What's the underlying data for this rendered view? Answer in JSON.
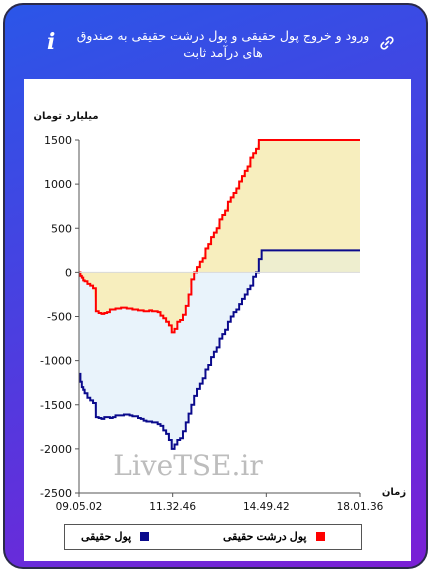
{
  "header": {
    "title": "ورود و خروج پول حقیقی و پول درشت حقیقی به صندوق های درآمد ثابت"
  },
  "watermark": "LiveTSE.ir",
  "colors": {
    "real_money": "#0a0a8c",
    "big_real_money": "#ff0000",
    "fill_upper": "#f7eebe",
    "fill_lower": "#e9f3fb"
  },
  "chart_data": {
    "type": "line",
    "ylabel": "میلیارد تومان",
    "xlabel": "زمان",
    "ylim": [
      -2500,
      1500
    ],
    "yticks": [
      1500,
      1000,
      500,
      0,
      -500,
      -1000,
      -1500,
      -2000,
      -2500
    ],
    "xticks": [
      "09.05.02",
      "11.32.46",
      "14.49.42",
      "18.01.36"
    ],
    "x": [
      0,
      0.5,
      1,
      1.5,
      2,
      3,
      4,
      5,
      6,
      7,
      8,
      9,
      10,
      11,
      12,
      13,
      14,
      15,
      16,
      17,
      18,
      19,
      20,
      21,
      22,
      23,
      24,
      25,
      26,
      27,
      28,
      29,
      30,
      31,
      32,
      33,
      34,
      35,
      36,
      37,
      38,
      39,
      40,
      41,
      42,
      43,
      44,
      45,
      46,
      47,
      48,
      49,
      50,
      51,
      52,
      53,
      54,
      55,
      56,
      57,
      58,
      59,
      60,
      61,
      62,
      63,
      64,
      65,
      66,
      67,
      68,
      69,
      70,
      71,
      72,
      73,
      74,
      75,
      76,
      77,
      78,
      79,
      80,
      85,
      90,
      95,
      100
    ],
    "series": [
      {
        "name": "پول حقیقی",
        "color": "#0a0a8c",
        "values": [
          -1150,
          -1240,
          -1300,
          -1330,
          -1370,
          -1420,
          -1450,
          -1480,
          -1640,
          -1650,
          -1660,
          -1640,
          -1640,
          -1650,
          -1640,
          -1620,
          -1620,
          -1620,
          -1610,
          -1610,
          -1620,
          -1630,
          -1630,
          -1650,
          -1660,
          -1680,
          -1690,
          -1690,
          -1700,
          -1700,
          -1720,
          -1740,
          -1790,
          -1830,
          -1900,
          -2000,
          -1950,
          -1900,
          -1880,
          -1800,
          -1700,
          -1600,
          -1500,
          -1400,
          -1320,
          -1260,
          -1200,
          -1100,
          -1050,
          -960,
          -900,
          -850,
          -750,
          -700,
          -650,
          -560,
          -500,
          -450,
          -420,
          -360,
          -300,
          -250,
          -190,
          -150,
          -50,
          0,
          150,
          250,
          250,
          250,
          250,
          250,
          250,
          250,
          250,
          250,
          250,
          250,
          250,
          250,
          250,
          250,
          250,
          250,
          250,
          250,
          250
        ]
      },
      {
        "name": "پول درشت حقیقی",
        "color": "#ff0000",
        "values": [
          0,
          -40,
          -60,
          -90,
          -100,
          -130,
          -150,
          -180,
          -440,
          -460,
          -470,
          -460,
          -450,
          -420,
          -420,
          -410,
          -410,
          -400,
          -400,
          -410,
          -410,
          -420,
          -420,
          -430,
          -430,
          -440,
          -440,
          -430,
          -440,
          -440,
          -450,
          -490,
          -520,
          -560,
          -600,
          -680,
          -640,
          -560,
          -540,
          -480,
          -380,
          -250,
          -80,
          0,
          60,
          120,
          160,
          270,
          320,
          400,
          450,
          500,
          600,
          650,
          700,
          800,
          850,
          900,
          950,
          1030,
          1090,
          1150,
          1200,
          1300,
          1350,
          1400,
          1500,
          1500,
          1500,
          1500,
          1500,
          1500,
          1500,
          1500,
          1500,
          1500,
          1500,
          1500,
          1500,
          1500,
          1500,
          1500,
          1500,
          1500,
          1500,
          1500,
          1500
        ]
      }
    ],
    "legend": "bottom",
    "grid": false
  }
}
